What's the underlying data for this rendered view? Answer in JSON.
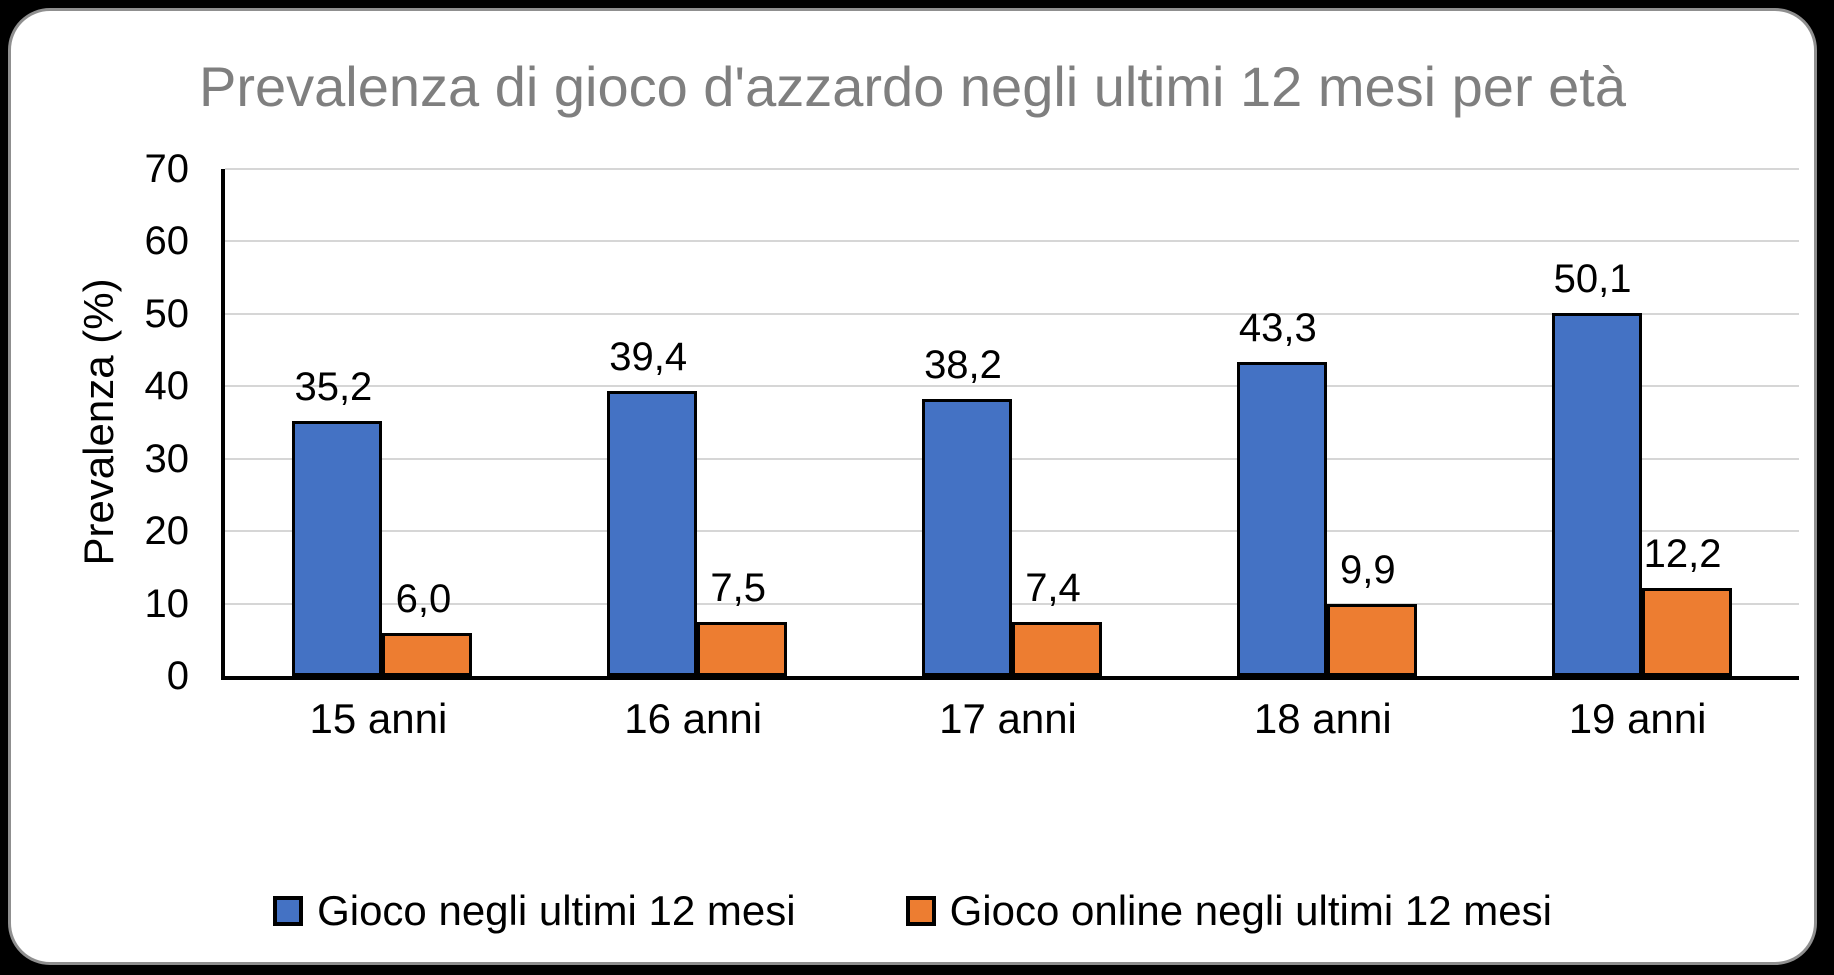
{
  "chart_data": {
    "type": "bar",
    "title": "Prevalenza di gioco d'azzardo negli ultimi 12 mesi per età",
    "ylabel": "Prevalenza (%)",
    "xlabel": "",
    "ylim": [
      0,
      70
    ],
    "yticks": [
      0,
      10,
      20,
      30,
      40,
      50,
      60,
      70
    ],
    "grid": true,
    "legend_position": "bottom",
    "categories": [
      "15 anni",
      "16 anni",
      "17 anni",
      "18 anni",
      "19 anni"
    ],
    "series": [
      {
        "name": "Gioco negli ultimi 12 mesi",
        "key": "gioco",
        "color": "#4472C4",
        "values": [
          35.2,
          39.4,
          38.2,
          43.3,
          50.1
        ],
        "labels": [
          "35,2",
          "39,4",
          "38,2",
          "43,3",
          "50,1"
        ]
      },
      {
        "name": "Gioco online negli ultimi 12 mesi",
        "key": "gioco-online",
        "color": "#ED7D31",
        "values": [
          6.0,
          7.5,
          7.4,
          9.9,
          12.2
        ],
        "labels": [
          "6,0",
          "7,5",
          "7,4",
          "9,9",
          "12,2"
        ]
      }
    ],
    "colors": {
      "title_text": "#7F7F7F",
      "series_blue": "#4472C4",
      "series_orange": "#ED7D31",
      "bar_border": "#000000",
      "gridline": "#D6D6D6",
      "axis": "#000000",
      "card_background": "#FFFFFF",
      "page_background": "#000000"
    }
  }
}
